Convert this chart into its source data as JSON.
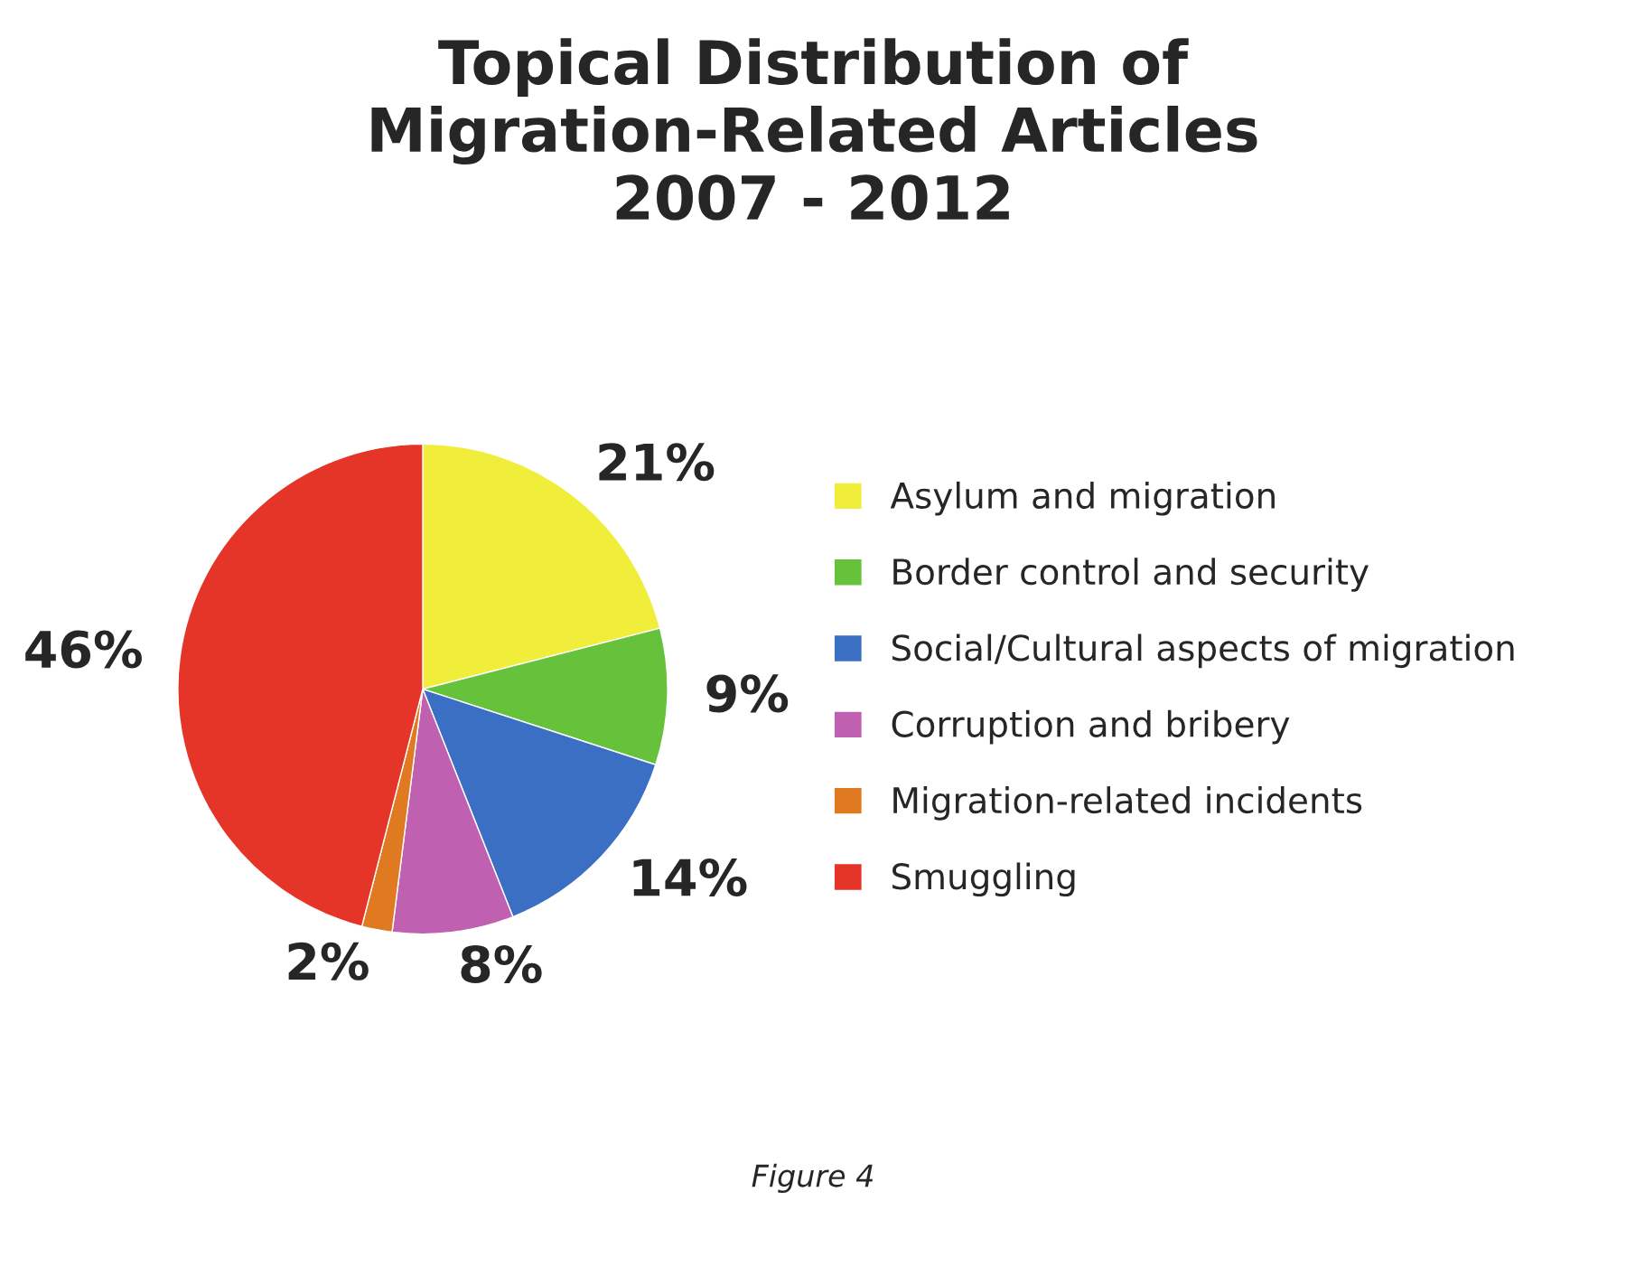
{
  "chart_data": {
    "type": "pie",
    "title": "Topical Distribution of\nMigration-Related Articles\n2007 - 2012",
    "categories": [
      "Asylum and migration",
      "Border control and security",
      "Social/Cultural aspects of migration",
      "Corruption and bribery",
      "Migration-related incidents",
      "Smuggling"
    ],
    "values": [
      21,
      9,
      14,
      8,
      2,
      46
    ],
    "colors": [
      "#f0ee3a",
      "#66c23a",
      "#3a6fc4",
      "#c060b0",
      "#e07a20",
      "#e53528"
    ],
    "value_labels": [
      "21%",
      "9%",
      "14%",
      "8%",
      "2%",
      "46%"
    ],
    "legend": "right",
    "annotations": [
      "Figure 4"
    ]
  }
}
